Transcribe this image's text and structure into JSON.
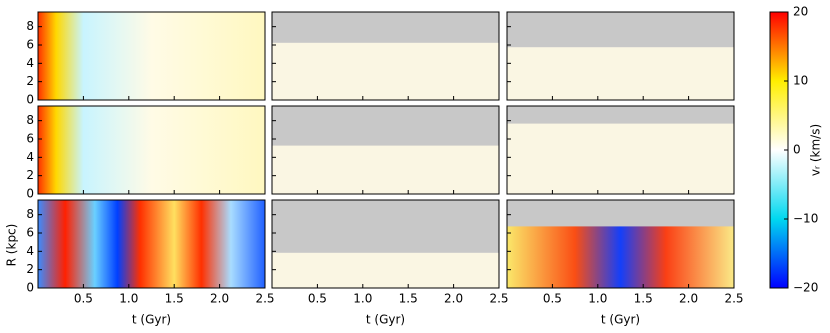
{
  "chart_data": {
    "type": "heatmap",
    "xlabel": "t (Gyr)",
    "ylabel": "R (kpc)",
    "xlim": [
      0,
      2.5
    ],
    "xticks": [
      0.5,
      {
        "value": 1,
        "label": "1.0"
      },
      1.5,
      {
        "value": 2,
        "label": "2.0"
      },
      2.5
    ],
    "ylim": [
      0,
      9.6
    ],
    "yticks": [
      0,
      2,
      4,
      6,
      8
    ],
    "colorbar": {
      "label": "vᵣ (km/s)",
      "lim": [
        -20,
        20
      ],
      "ticks": [
        {
          "value": -20,
          "label": "−20"
        },
        {
          "value": -10,
          "label": "−10"
        },
        0,
        10,
        20
      ]
    }
  }
}
